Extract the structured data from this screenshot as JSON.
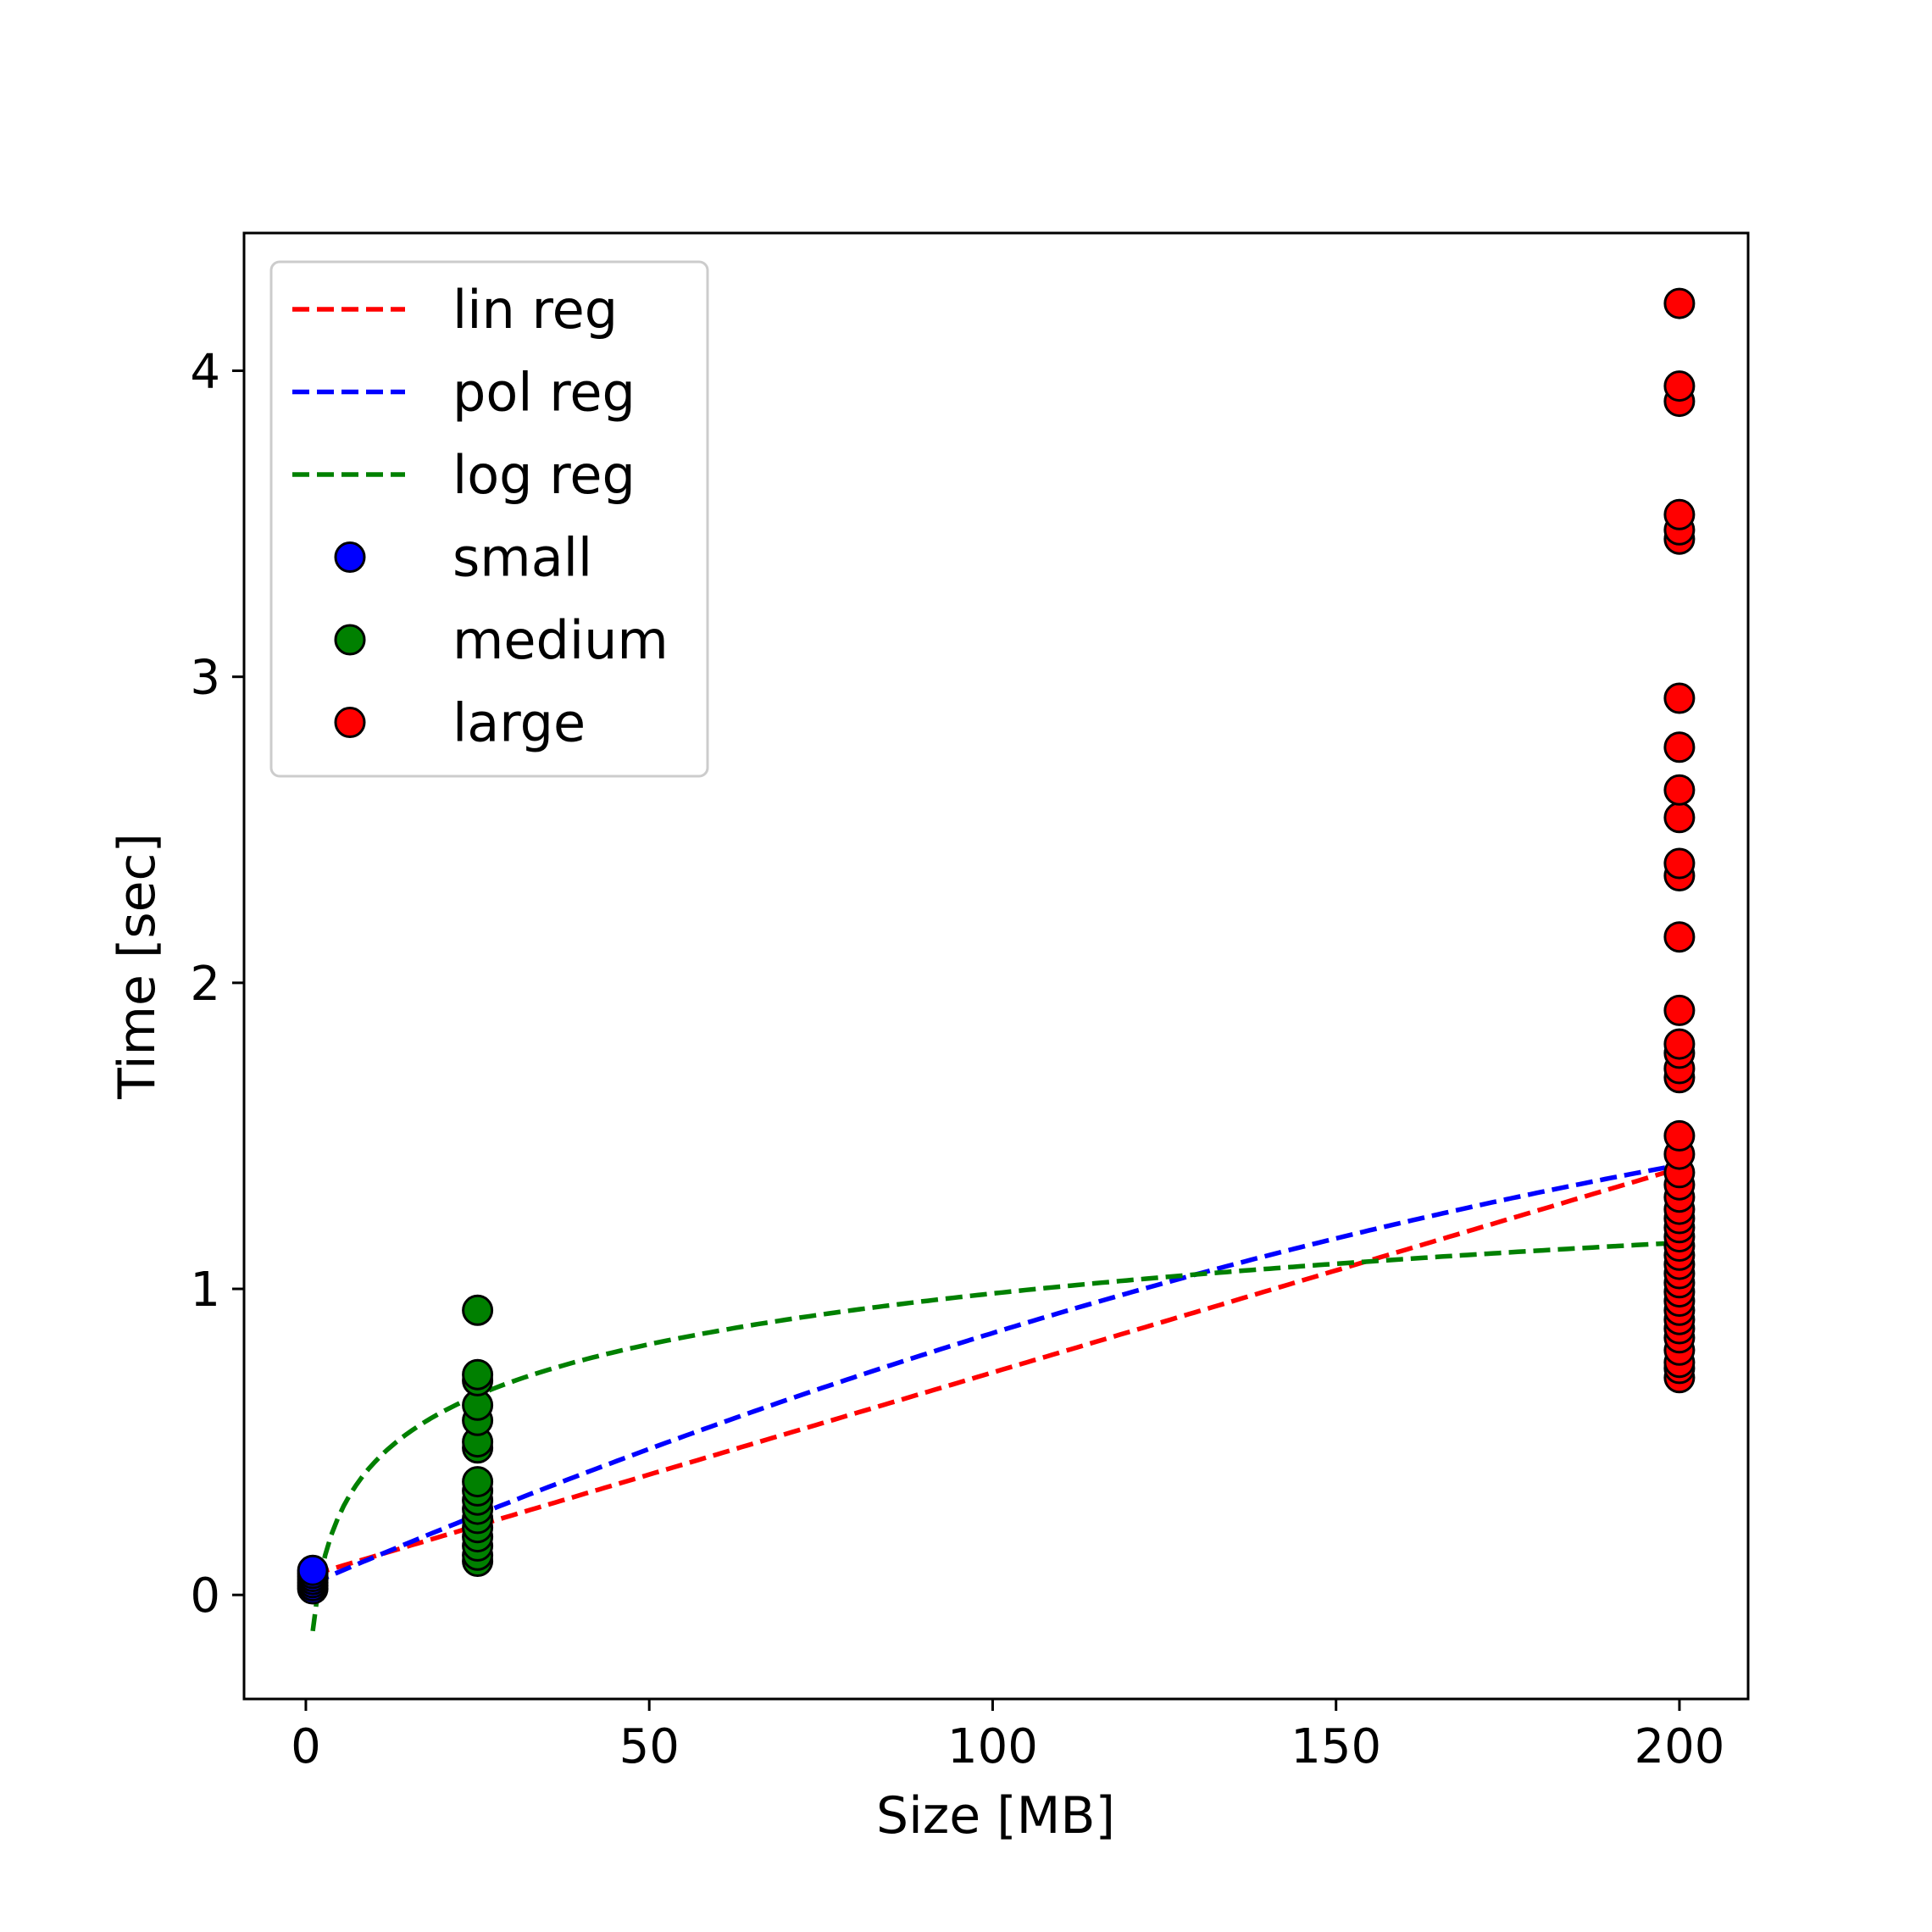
{
  "chart_data": {
    "type": "scatter",
    "title": "",
    "xlabel": "Size [MB]",
    "ylabel": "Time [sec]",
    "xlim": [
      -9,
      210
    ],
    "ylim": [
      -0.34,
      4.45
    ],
    "xticks": [
      0,
      50,
      100,
      150,
      200
    ],
    "yticks": [
      0,
      1,
      2,
      3,
      4
    ],
    "grid": false,
    "legend_position": "top-left",
    "lines": [
      {
        "name": "lin reg",
        "color": "#ff0000",
        "style": "dashed",
        "fn": "linear",
        "params": [
          0.0598,
          0.00667
        ],
        "domain": [
          1,
          200
        ]
      },
      {
        "name": "pol reg",
        "color": "#0000ff",
        "style": "dashed",
        "fn": "poly2",
        "params": [
          0.0287,
          0.00966,
          -1.39e-05
        ],
        "domain": [
          1,
          200
        ]
      },
      {
        "name": "log reg",
        "color": "#008000",
        "style": "dashed",
        "fn": "log",
        "params": [
          -0.118,
          0.2395
        ],
        "domain": [
          1,
          200
        ]
      }
    ],
    "series": [
      {
        "name": "small",
        "color": "#0000ff",
        "x": [
          1,
          1,
          1,
          1,
          1,
          1,
          1
        ],
        "y": [
          0.02,
          0.03,
          0.04,
          0.05,
          0.06,
          0.07,
          0.08
        ]
      },
      {
        "name": "medium",
        "color": "#008000",
        "x": [
          25,
          25,
          25,
          25,
          25,
          25,
          25,
          25,
          25,
          25,
          25,
          25,
          25,
          25,
          25,
          25
        ],
        "y": [
          0.11,
          0.13,
          0.16,
          0.19,
          0.22,
          0.25,
          0.28,
          0.31,
          0.34,
          0.37,
          0.48,
          0.5,
          0.57,
          0.62,
          0.7,
          0.72
        ]
      },
      {
        "name": "medium",
        "color": "#008000",
        "x": [
          25
        ],
        "y": [
          0.93
        ]
      },
      {
        "name": "large",
        "color": "#ff0000",
        "x": [
          200,
          200,
          200,
          200,
          200,
          200,
          200,
          200,
          200,
          200,
          200,
          200,
          200,
          200,
          200,
          200,
          200,
          200,
          200,
          200,
          200,
          200,
          200,
          200,
          200,
          200,
          200,
          200,
          200,
          200,
          200,
          200,
          200,
          200,
          200,
          200,
          200,
          200,
          200,
          200
        ],
        "y": [
          0.71,
          0.74,
          0.76,
          0.8,
          0.84,
          0.87,
          0.9,
          0.93,
          0.96,
          0.99,
          1.02,
          1.05,
          1.08,
          1.11,
          1.14,
          1.17,
          1.2,
          1.23,
          1.26,
          1.3,
          1.34,
          1.38,
          1.44,
          1.5,
          1.69,
          1.72,
          1.77,
          1.8,
          1.91,
          2.15,
          2.35,
          2.39,
          2.54,
          2.63,
          2.77,
          2.93,
          3.45,
          3.48,
          3.53,
          3.9
        ]
      },
      {
        "name": "large",
        "color": "#ff0000",
        "x": [
          200,
          200
        ],
        "y": [
          3.95,
          4.22
        ]
      }
    ],
    "legend": [
      {
        "label": "lin reg",
        "kind": "line",
        "color": "#ff0000"
      },
      {
        "label": "pol reg",
        "kind": "line",
        "color": "#0000ff"
      },
      {
        "label": "log reg",
        "kind": "line",
        "color": "#008000"
      },
      {
        "label": "small",
        "kind": "marker",
        "color": "#0000ff"
      },
      {
        "label": "medium",
        "kind": "marker",
        "color": "#008000"
      },
      {
        "label": "large",
        "kind": "marker",
        "color": "#ff0000"
      }
    ]
  }
}
